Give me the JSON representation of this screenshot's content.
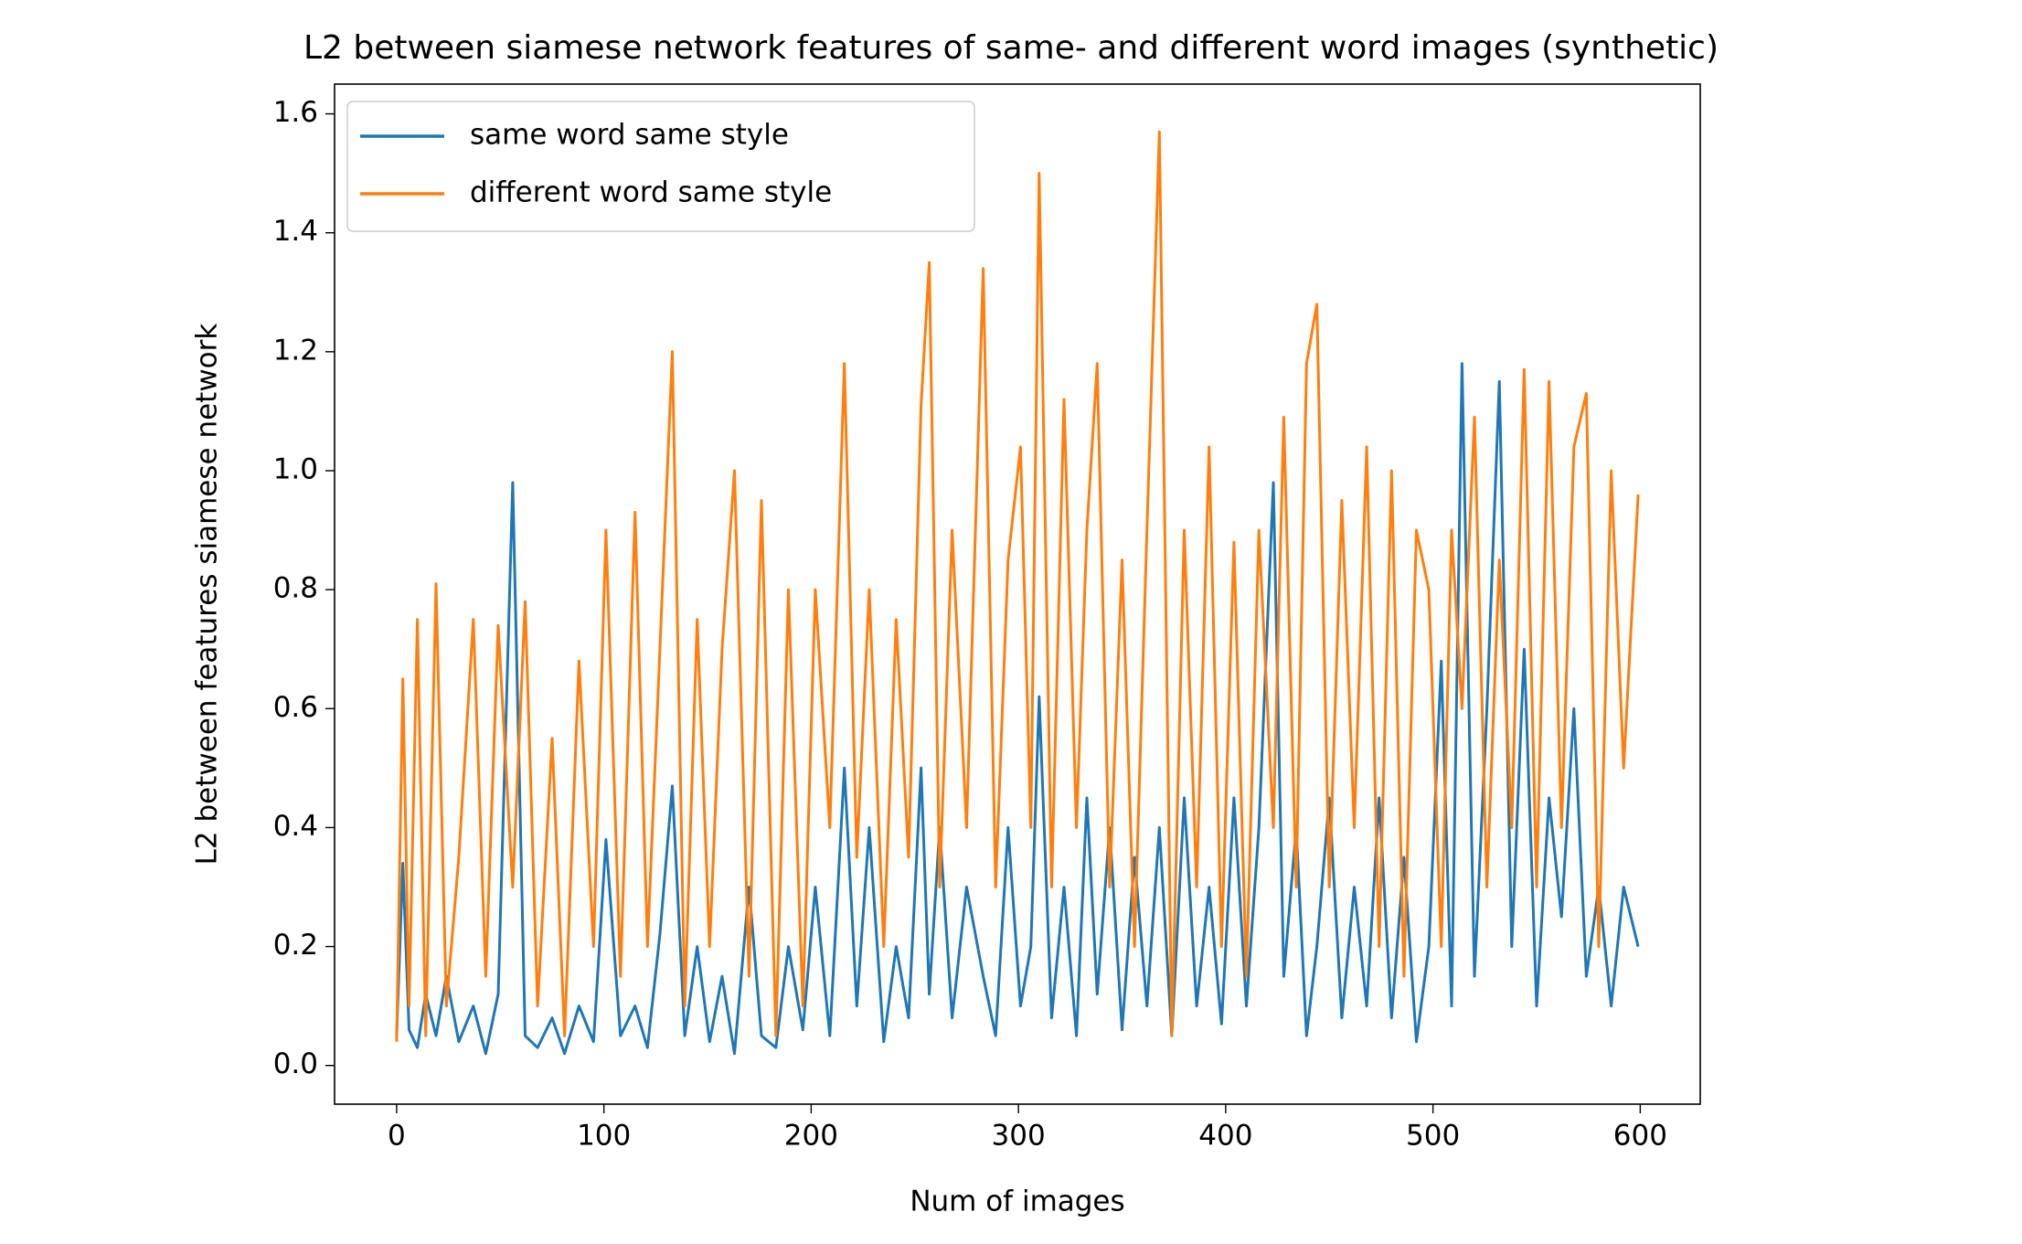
{
  "chart_data": {
    "type": "line",
    "title": "L2 between siamese network features of same- and different word images (synthetic)",
    "x_label": "Num of images",
    "y_label": "L2 between features siamese network",
    "x": [
      0,
      3,
      6,
      10,
      14,
      19,
      24,
      30,
      37,
      43,
      49,
      56,
      62,
      68,
      75,
      81,
      88,
      95,
      101,
      108,
      115,
      121,
      127,
      133,
      139,
      145,
      151,
      157,
      163,
      170,
      176,
      183,
      189,
      196,
      202,
      209,
      216,
      222,
      228,
      235,
      241,
      247,
      253,
      257,
      262,
      268,
      275,
      283,
      289,
      295,
      301,
      306,
      310,
      316,
      322,
      328,
      333,
      338,
      344,
      350,
      356,
      362,
      368,
      374,
      380,
      386,
      392,
      398,
      404,
      410,
      416,
      423,
      428,
      434,
      439,
      444,
      450,
      456,
      462,
      468,
      474,
      480,
      486,
      492,
      498,
      504,
      509,
      514,
      520,
      526,
      532,
      538,
      544,
      550,
      556,
      562,
      568,
      574,
      580,
      586,
      592,
      599
    ],
    "series": [
      {
        "name": "same word same style",
        "color": "#1f77b4",
        "values": [
          0.05,
          0.34,
          0.06,
          0.03,
          0.12,
          0.05,
          0.15,
          0.04,
          0.1,
          0.02,
          0.12,
          0.98,
          0.05,
          0.03,
          0.08,
          0.02,
          0.1,
          0.04,
          0.38,
          0.05,
          0.1,
          0.03,
          0.22,
          0.47,
          0.05,
          0.2,
          0.04,
          0.15,
          0.02,
          0.3,
          0.05,
          0.03,
          0.2,
          0.06,
          0.3,
          0.05,
          0.5,
          0.1,
          0.4,
          0.04,
          0.2,
          0.08,
          0.5,
          0.12,
          0.4,
          0.08,
          0.3,
          0.15,
          0.05,
          0.4,
          0.1,
          0.2,
          0.62,
          0.08,
          0.3,
          0.05,
          0.45,
          0.12,
          0.4,
          0.06,
          0.35,
          0.1,
          0.4,
          0.05,
          0.45,
          0.1,
          0.3,
          0.07,
          0.45,
          0.1,
          0.4,
          0.98,
          0.15,
          0.4,
          0.05,
          0.2,
          0.45,
          0.08,
          0.3,
          0.1,
          0.45,
          0.08,
          0.35,
          0.04,
          0.2,
          0.68,
          0.1,
          1.18,
          0.15,
          0.6,
          1.15,
          0.2,
          0.7,
          0.1,
          0.45,
          0.25,
          0.6,
          0.15,
          0.3,
          0.1,
          0.3,
          0.2
        ]
      },
      {
        "name": "different word same style",
        "color": "#ff7f0e",
        "values": [
          0.04,
          0.65,
          0.1,
          0.75,
          0.05,
          0.81,
          0.1,
          0.35,
          0.75,
          0.15,
          0.74,
          0.3,
          0.78,
          0.1,
          0.55,
          0.05,
          0.68,
          0.2,
          0.9,
          0.15,
          0.93,
          0.2,
          0.7,
          1.2,
          0.1,
          0.75,
          0.2,
          0.7,
          1.0,
          0.15,
          0.95,
          0.05,
          0.8,
          0.1,
          0.8,
          0.4,
          1.18,
          0.35,
          0.8,
          0.2,
          0.75,
          0.35,
          1.11,
          1.35,
          0.3,
          0.9,
          0.4,
          1.34,
          0.3,
          0.85,
          1.04,
          0.4,
          1.5,
          0.3,
          1.12,
          0.4,
          0.9,
          1.18,
          0.3,
          0.85,
          0.2,
          0.9,
          1.57,
          0.05,
          0.9,
          0.3,
          1.04,
          0.2,
          0.88,
          0.15,
          0.9,
          0.4,
          1.09,
          0.3,
          1.18,
          1.28,
          0.3,
          0.95,
          0.4,
          1.04,
          0.2,
          1.0,
          0.15,
          0.9,
          0.8,
          0.2,
          0.9,
          0.6,
          1.09,
          0.3,
          0.85,
          0.4,
          1.17,
          0.3,
          1.15,
          0.4,
          1.04,
          1.13,
          0.2,
          1.0,
          0.5,
          0.96
        ]
      }
    ],
    "xlim": [
      -29.95,
      628.95
    ],
    "xticks": [
      0,
      100,
      200,
      300,
      400,
      500,
      600
    ],
    "ylim": [
      -0.065,
      1.65
    ],
    "yticks": [
      {
        "value": 0,
        "label": "0.0"
      },
      {
        "value": 0.2,
        "label": "0.2"
      },
      {
        "value": 0.4,
        "label": "0.4"
      },
      {
        "value": 0.6,
        "label": "0.6"
      },
      {
        "value": 0.8,
        "label": "0.8"
      },
      {
        "value": 1,
        "label": "1.0"
      },
      {
        "value": 1.2,
        "label": "1.2"
      },
      {
        "value": 1.4,
        "label": "1.4"
      },
      {
        "value": 1.6,
        "label": "1.6"
      }
    ],
    "legend": "upper left"
  }
}
